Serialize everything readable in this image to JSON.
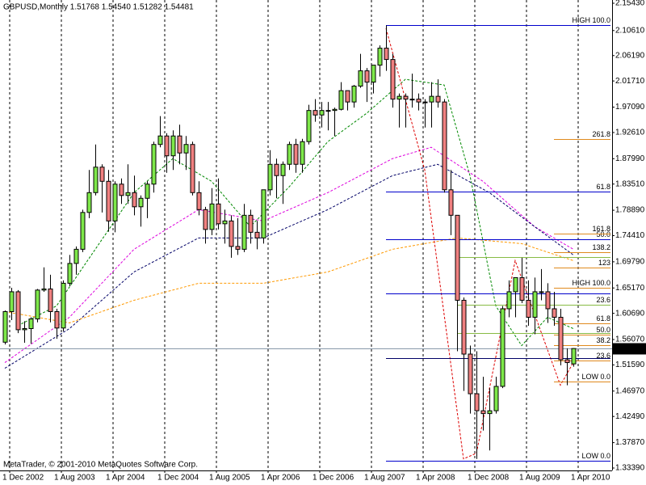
{
  "chart_data": {
    "type": "candlestick",
    "title": "GBPUSD,Monthly  1.51768 1.54540 1.51282 1.54481",
    "footer": "MetaTrader, © 2001-2010 MetaQuotes Software Corp.",
    "categories": [
      "1 Dec 2002",
      null,
      null,
      null,
      null,
      null,
      null,
      null,
      "1 Aug 2003",
      null,
      null,
      null,
      null,
      null,
      null,
      null,
      "1 Apr 2004",
      null,
      null,
      null,
      null,
      null,
      null,
      null,
      "1 Dec 2004",
      null,
      null,
      null,
      null,
      null,
      null,
      null,
      "1 Aug 2005",
      null,
      null,
      null,
      null,
      null,
      null,
      null,
      "1 Apr 2006",
      null,
      null,
      null,
      null,
      null,
      null,
      null,
      "1 Dec 2006",
      null,
      null,
      null,
      null,
      null,
      null,
      null,
      "1 Aug 2007",
      null,
      null,
      null,
      null,
      null,
      null,
      null,
      "1 Apr 2008",
      null,
      null,
      null,
      null,
      null,
      null,
      null,
      "1 Dec 2008",
      null,
      null,
      null,
      null,
      null,
      null,
      null,
      "1 Aug 2009",
      null,
      null,
      null,
      null,
      null,
      null,
      null,
      "1 Apr 2010"
    ],
    "open": [
      1.556,
      1.61,
      1.645,
      1.578,
      1.58,
      1.597,
      1.648,
      1.65,
      1.61,
      1.581,
      1.66,
      1.695,
      1.72,
      1.785,
      1.82,
      1.865,
      1.84,
      1.77,
      1.835,
      1.815,
      1.82,
      1.795,
      1.81,
      1.835,
      1.905,
      1.92,
      1.885,
      1.92,
      1.89,
      1.905,
      1.82,
      1.79,
      1.755,
      1.8,
      1.765,
      1.77,
      1.725,
      1.72,
      1.78,
      1.75,
      1.74,
      1.825,
      1.87,
      1.85,
      1.87,
      1.905,
      1.87,
      1.91,
      1.965,
      1.957,
      1.965,
      1.965,
      1.967,
      2.0,
      1.98,
      2.008,
      2.035,
      2.015,
      2.045,
      2.075,
      2.055,
      1.985,
      1.99,
      1.985,
      1.985,
      1.98,
      1.98,
      1.99,
      1.98,
      1.825,
      1.78,
      1.63,
      1.535,
      1.465,
      1.435,
      1.43,
      1.435,
      1.478,
      1.615,
      1.645,
      1.67,
      1.63,
      1.6,
      1.645,
      1.645,
      1.615,
      1.6,
      1.525,
      1.51768
    ],
    "high": [
      1.612,
      1.652,
      1.648,
      1.593,
      1.6,
      1.65,
      1.688,
      1.675,
      1.615,
      1.665,
      1.71,
      1.725,
      1.79,
      1.86,
      1.905,
      1.87,
      1.86,
      1.84,
      1.845,
      1.87,
      1.85,
      1.815,
      1.84,
      1.91,
      1.955,
      1.925,
      1.93,
      1.94,
      1.92,
      1.91,
      1.84,
      1.795,
      1.828,
      1.845,
      1.79,
      1.78,
      1.775,
      1.8,
      1.79,
      1.77,
      1.825,
      1.895,
      1.88,
      1.875,
      1.91,
      1.915,
      1.915,
      1.975,
      1.985,
      1.98,
      1.98,
      1.97,
      2.015,
      2.0,
      2.01,
      2.065,
      2.04,
      2.045,
      2.08,
      2.115,
      2.065,
      1.995,
      1.995,
      2.03,
      1.995,
      1.985,
      2.015,
      2.02,
      1.985,
      1.86,
      1.78,
      1.635,
      1.55,
      1.54,
      1.495,
      1.475,
      1.495,
      1.62,
      1.665,
      1.67,
      1.705,
      1.665,
      1.67,
      1.685,
      1.66,
      1.645,
      1.615,
      1.545,
      1.5454
    ],
    "low": [
      1.552,
      1.595,
      1.572,
      1.555,
      1.553,
      1.591,
      1.645,
      1.591,
      1.562,
      1.575,
      1.655,
      1.675,
      1.715,
      1.775,
      1.815,
      1.785,
      1.751,
      1.75,
      1.8,
      1.8,
      1.78,
      1.76,
      1.775,
      1.82,
      1.9,
      1.855,
      1.86,
      1.87,
      1.86,
      1.815,
      1.78,
      1.73,
      1.745,
      1.755,
      1.73,
      1.705,
      1.71,
      1.715,
      1.73,
      1.72,
      1.73,
      1.815,
      1.81,
      1.8,
      1.86,
      1.855,
      1.855,
      1.905,
      1.945,
      1.935,
      1.93,
      1.92,
      1.965,
      1.965,
      1.97,
      2.005,
      1.98,
      1.995,
      2.025,
      2.035,
      1.97,
      1.935,
      1.935,
      1.97,
      1.965,
      1.935,
      1.935,
      1.97,
      1.82,
      1.745,
      1.54,
      1.47,
      1.43,
      1.35,
      1.4,
      1.365,
      1.43,
      1.475,
      1.6,
      1.6,
      1.625,
      1.585,
      1.57,
      1.63,
      1.59,
      1.585,
      1.515,
      1.48,
      1.51282
    ],
    "close": [
      1.61,
      1.645,
      1.578,
      1.58,
      1.597,
      1.648,
      1.65,
      1.61,
      1.581,
      1.66,
      1.695,
      1.72,
      1.785,
      1.82,
      1.865,
      1.84,
      1.77,
      1.835,
      1.815,
      1.82,
      1.795,
      1.81,
      1.835,
      1.905,
      1.92,
      1.885,
      1.92,
      1.89,
      1.905,
      1.82,
      1.79,
      1.755,
      1.8,
      1.765,
      1.77,
      1.725,
      1.72,
      1.78,
      1.75,
      1.74,
      1.825,
      1.87,
      1.85,
      1.87,
      1.905,
      1.87,
      1.91,
      1.965,
      1.957,
      1.965,
      1.965,
      1.967,
      2.0,
      1.98,
      2.008,
      2.035,
      2.015,
      2.045,
      2.075,
      2.055,
      1.985,
      1.99,
      1.985,
      1.985,
      1.98,
      1.98,
      1.99,
      1.98,
      1.825,
      1.78,
      1.63,
      1.535,
      1.465,
      1.435,
      1.43,
      1.435,
      1.478,
      1.615,
      1.645,
      1.67,
      1.63,
      1.6,
      1.645,
      1.645,
      1.615,
      1.6,
      1.525,
      1.52,
      1.54481
    ],
    "up_color": "#7ee84a",
    "down_color": "#f08080",
    "edge_color": "#000000",
    "ylim": [
      1.3296,
      2.16
    ],
    "yticks": [
      {
        "value": 2.1543,
        "label": "2.15430"
      },
      {
        "value": 2.1061,
        "label": "2.10610"
      },
      {
        "value": 2.0619,
        "label": "2.06190"
      },
      {
        "value": 2.0171,
        "label": "2.01710"
      },
      {
        "value": 1.9709,
        "label": "1.97090"
      },
      {
        "value": 1.9261,
        "label": "1.92610"
      },
      {
        "value": 1.8799,
        "label": "1.87990"
      },
      {
        "value": 1.8351,
        "label": "1.83510"
      },
      {
        "value": 1.7889,
        "label": "1.78890"
      },
      {
        "value": 1.7441,
        "label": "1.74410"
      },
      {
        "value": 1.6979,
        "label": "1.69790"
      },
      {
        "value": 1.6517,
        "label": "1.65170"
      },
      {
        "value": 1.6069,
        "label": "1.60690"
      },
      {
        "value": 1.5607,
        "label": "1.56070"
      },
      {
        "value": 1.5159,
        "label": "1.51590"
      },
      {
        "value": 1.4697,
        "label": "1.46970"
      },
      {
        "value": 1.4249,
        "label": "1.42490"
      },
      {
        "value": 1.3787,
        "label": "1.37870"
      },
      {
        "value": 1.3339,
        "label": "1.33390"
      }
    ],
    "grid": true,
    "price_line_color": "#8899aa",
    "levels": [
      {
        "value": 2.1158,
        "label": "HIGH 100.0",
        "color": "#0000cc",
        "from": 59
      },
      {
        "value": 1.8219,
        "label": "61.8",
        "color": "#0000cc",
        "from": 59
      },
      {
        "value": 1.7377,
        "label": "50.0",
        "color": "#0000cc",
        "from": 59
      },
      {
        "value": 1.6421,
        "color": "#0000cc",
        "from": 59
      },
      {
        "value": 1.528,
        "color": "#000066",
        "from": 59
      },
      {
        "value": 1.3468,
        "label": "LOW 0.0",
        "color": "#0000cc",
        "from": 59
      },
      {
        "value": 1.9146,
        "label": "261.8",
        "color": "#e08a1e",
        "from": 85
      },
      {
        "value": 1.7477,
        "label": "161.8",
        "color": "#e08a1e",
        "from": 85
      },
      {
        "value": 1.7149,
        "label": "138.2",
        "color": "#e08a1e",
        "from": 85
      },
      {
        "value": 1.6878,
        "label": "123",
        "color": "#e08a1e",
        "from": 85
      },
      {
        "value": 1.6521,
        "label": "HIGH 100.0",
        "color": "#e08a1e",
        "from": 85
      },
      {
        "value": 1.5893,
        "label": "61.8",
        "color": "#e08a1e",
        "from": 85
      },
      {
        "value": 1.5693,
        "label": "50.0",
        "color": "#e08a1e",
        "from": 85
      },
      {
        "value": 1.5508,
        "label": "38.2",
        "color": "#e08a1e",
        "from": 85
      },
      {
        "value": 1.5237,
        "label": "23.6",
        "color": "#e08a1e",
        "from": 85
      },
      {
        "value": 1.4866,
        "label": "LOW 0.0",
        "color": "#e08a1e",
        "from": 85
      },
      {
        "value": 1.7063,
        "color": "#88bb44",
        "from": 70
      },
      {
        "value": 1.6221,
        "label": "23.6",
        "color": "#88bb44",
        "from": 70
      },
      {
        "value": 1.5722,
        "color": "#88bb44",
        "from": 70
      }
    ],
    "lines": [
      {
        "color": "#008800",
        "x": [
          2,
          8,
          14,
          20,
          26,
          32,
          38,
          44,
          50,
          56,
          62,
          68,
          72,
          76,
          80,
          84,
          88
        ],
        "values": [
          1.585,
          1.62,
          1.72,
          1.82,
          1.88,
          1.84,
          1.76,
          1.83,
          1.91,
          1.96,
          2.02,
          2.01,
          1.85,
          1.62,
          1.55,
          1.6,
          1.58
        ]
      },
      {
        "color": "#dd00dd",
        "x": [
          0,
          10,
          20,
          30,
          40,
          50,
          60,
          66,
          74,
          82,
          88
        ],
        "values": [
          1.52,
          1.6,
          1.72,
          1.79,
          1.77,
          1.82,
          1.88,
          1.9,
          1.84,
          1.76,
          1.72
        ]
      },
      {
        "color": "#000066",
        "x": [
          0,
          10,
          20,
          30,
          40,
          50,
          60,
          67,
          75,
          82,
          88
        ],
        "values": [
          1.51,
          1.58,
          1.68,
          1.74,
          1.74,
          1.79,
          1.85,
          1.87,
          1.82,
          1.76,
          1.71
        ]
      },
      {
        "color": "#ff9900",
        "x": [
          0,
          10,
          20,
          30,
          40,
          50,
          60,
          70,
          80,
          88
        ],
        "values": [
          1.61,
          1.59,
          1.63,
          1.66,
          1.66,
          1.68,
          1.72,
          1.74,
          1.73,
          1.7
        ]
      },
      {
        "color": "#dd0000",
        "x": [
          59,
          65,
          71,
          73,
          79,
          86,
          88
        ],
        "values": [
          2.11,
          1.86,
          1.35,
          1.36,
          1.7,
          1.48,
          1.52
        ]
      }
    ]
  }
}
